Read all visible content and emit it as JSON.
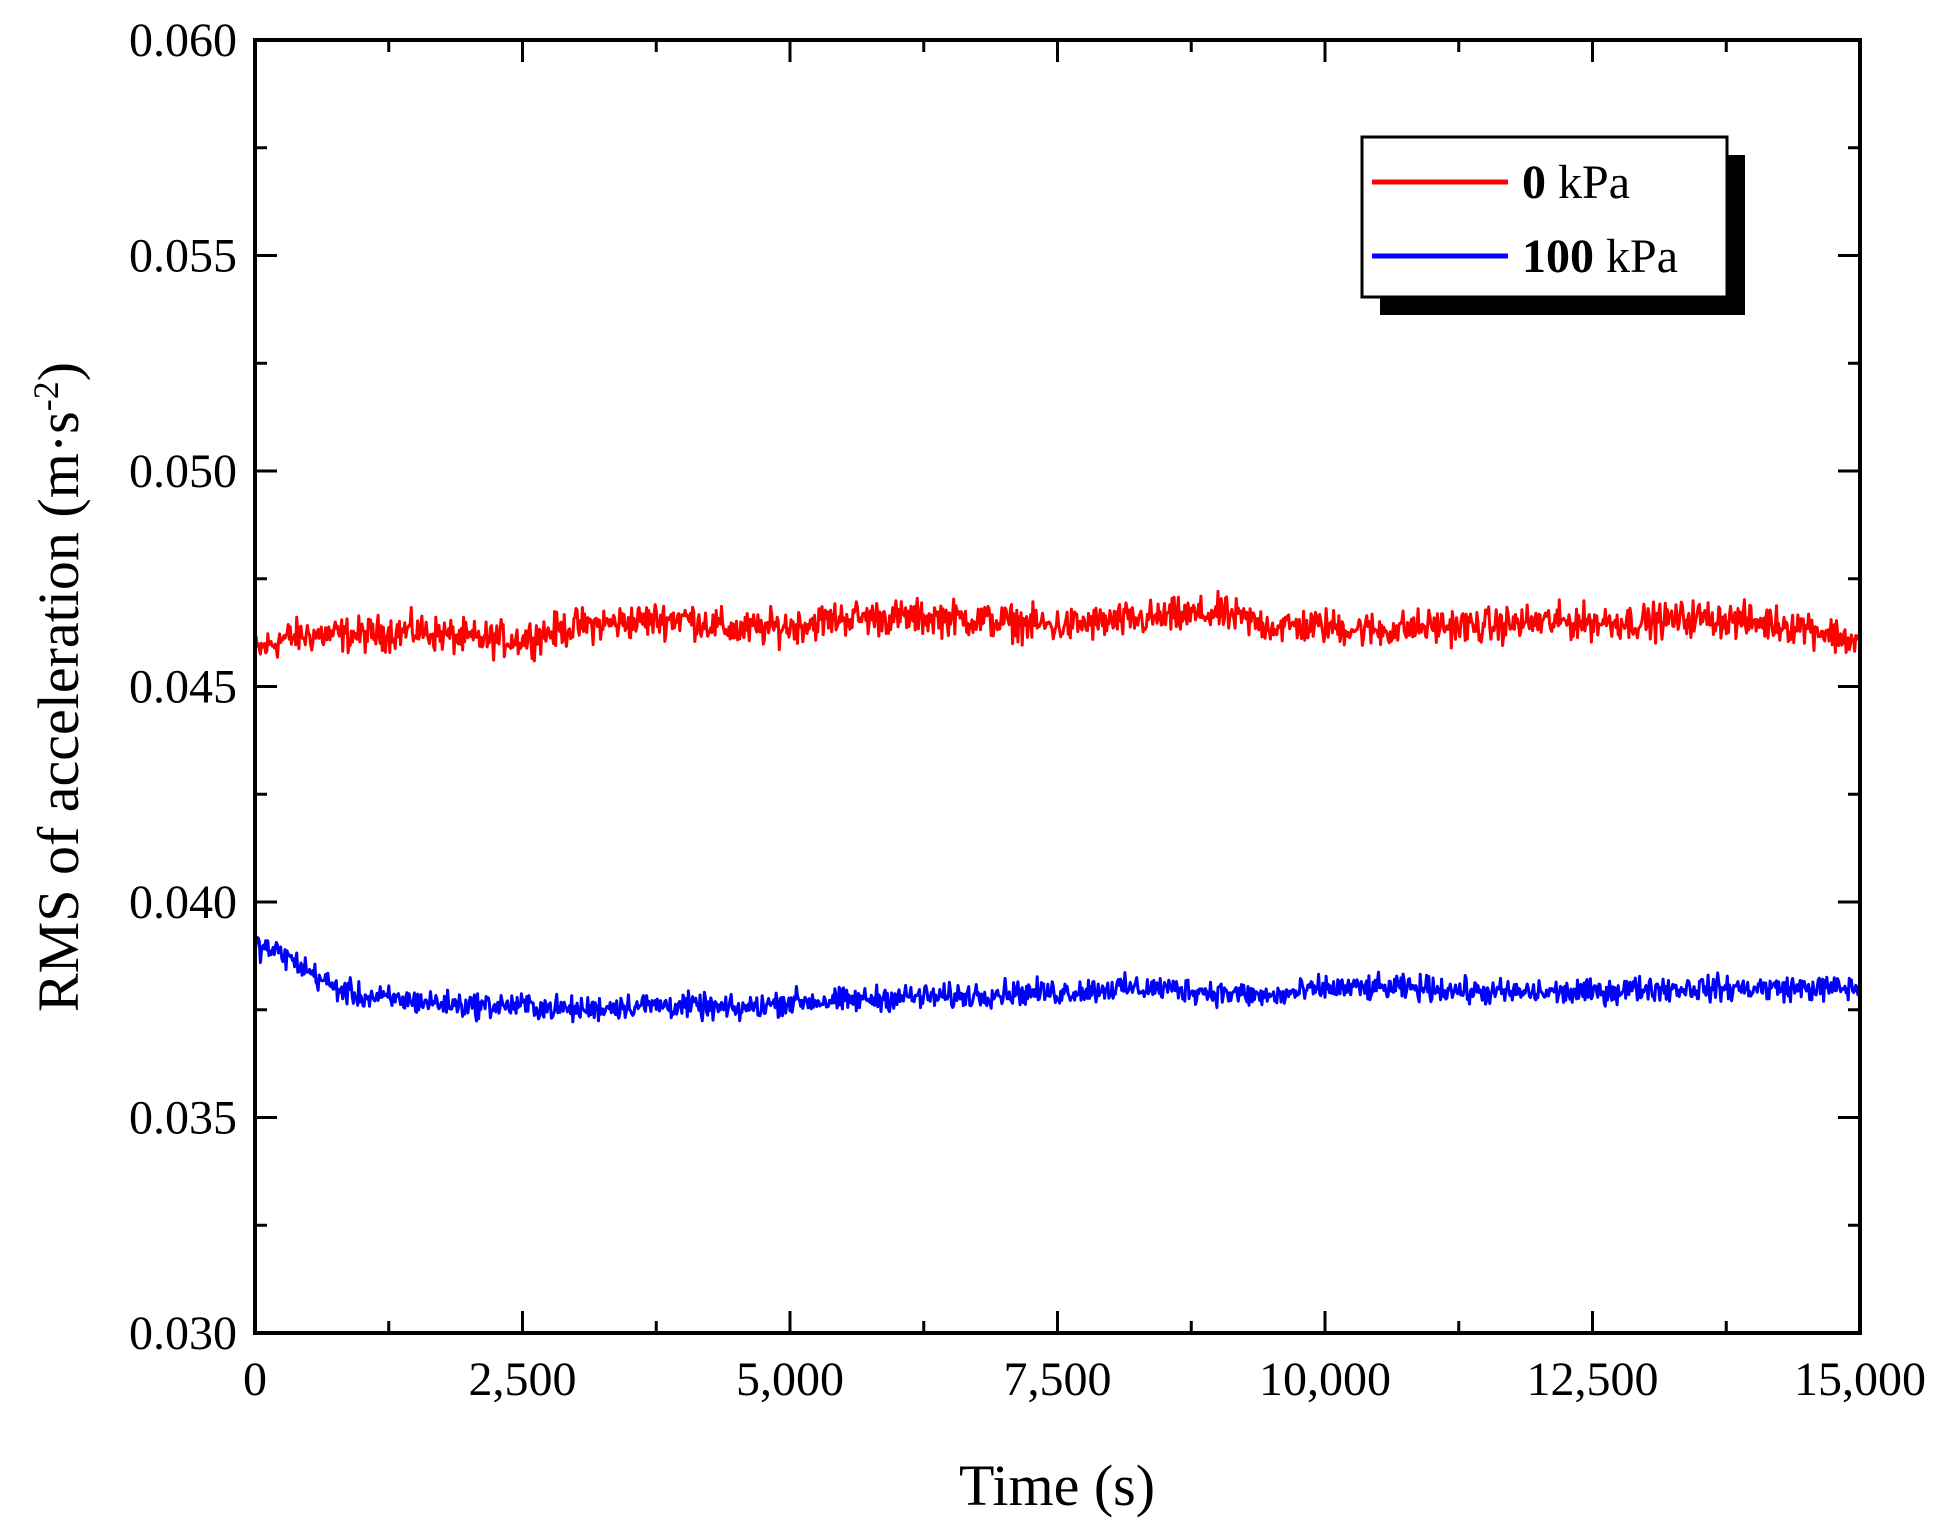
{
  "chart_data": {
    "type": "line",
    "title": "",
    "xlabel": "Time (s)",
    "ylabel_main": "RMS of acceleration (m·s",
    "ylabel_sup": "-2",
    "ylabel_close": ")",
    "xlim": [
      0,
      15000
    ],
    "ylim": [
      0.03,
      0.06
    ],
    "grid": false,
    "legend_position": "top-right",
    "x_ticks": [
      0,
      2500,
      5000,
      7500,
      10000,
      12500,
      15000
    ],
    "x_tick_labels": [
      "0",
      "2,500",
      "5,000",
      "7,500",
      "10,000",
      "12,500",
      "15,000"
    ],
    "y_ticks": [
      0.03,
      0.035,
      0.04,
      0.045,
      0.05,
      0.055,
      0.06
    ],
    "y_tick_labels": [
      "0.030",
      "0.035",
      "0.040",
      "0.045",
      "0.050",
      "0.055",
      "0.060"
    ],
    "series": [
      {
        "name": "0 kPa",
        "legend_number": "0",
        "legend_unit": "kPa",
        "color": "#ff0000",
        "x": [
          0,
          250,
          500,
          1000,
          1500,
          2000,
          2500,
          3000,
          3500,
          4000,
          4500,
          5000,
          5500,
          6000,
          6500,
          7000,
          7500,
          8000,
          8500,
          9000,
          9500,
          10000,
          10500,
          11000,
          11500,
          12000,
          12500,
          13000,
          13500,
          14000,
          14500,
          15000
        ],
        "values": [
          0.0458,
          0.0461,
          0.0462,
          0.0462,
          0.0463,
          0.0461,
          0.0461,
          0.0464,
          0.0465,
          0.0466,
          0.0463,
          0.0464,
          0.0466,
          0.0466,
          0.0466,
          0.0465,
          0.0464,
          0.0465,
          0.0466,
          0.0467,
          0.0464,
          0.0464,
          0.0463,
          0.0464,
          0.0464,
          0.0465,
          0.0465,
          0.0465,
          0.0466,
          0.0465,
          0.0464,
          0.046
        ],
        "noise": 0.00035
      },
      {
        "name": "100 kPa",
        "legend_number": "100",
        "legend_unit": "kPa",
        "color": "#0000ff",
        "x": [
          0,
          250,
          500,
          750,
          1000,
          1500,
          2000,
          2500,
          3000,
          3500,
          4000,
          4500,
          5000,
          5500,
          6000,
          6500,
          7000,
          7500,
          8000,
          8500,
          9000,
          9500,
          10000,
          10500,
          11000,
          11500,
          12000,
          12500,
          13000,
          13500,
          14000,
          14500,
          15000
        ],
        "values": [
          0.039,
          0.0388,
          0.0384,
          0.038,
          0.0378,
          0.0377,
          0.0376,
          0.0376,
          0.0375,
          0.0376,
          0.0376,
          0.0375,
          0.0377,
          0.0377,
          0.0378,
          0.0378,
          0.0379,
          0.0379,
          0.038,
          0.038,
          0.0379,
          0.0378,
          0.038,
          0.038,
          0.038,
          0.0379,
          0.0379,
          0.0379,
          0.038,
          0.038,
          0.038,
          0.038,
          0.038
        ],
        "noise": 0.00025
      }
    ]
  }
}
